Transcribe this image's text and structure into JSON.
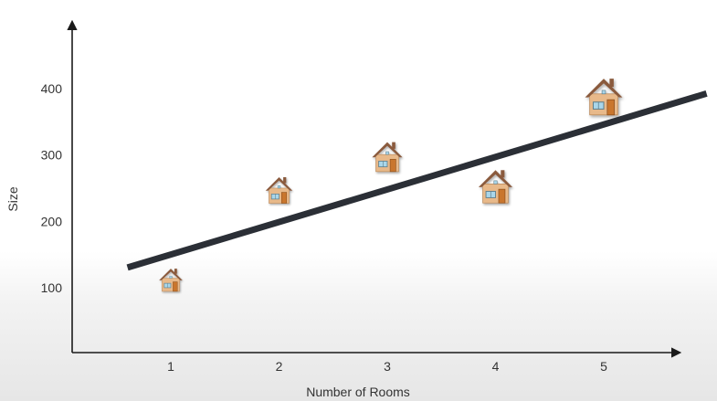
{
  "chart_data": {
    "type": "scatter",
    "xlabel": "Number of Rooms",
    "ylabel": "Size",
    "x_ticks": [
      1,
      2,
      3,
      4,
      5
    ],
    "y_ticks": [
      100,
      200,
      300,
      400
    ],
    "points": [
      {
        "x": 1,
        "y": 110,
        "marker": "house-icon"
      },
      {
        "x": 2,
        "y": 245,
        "marker": "house-icon"
      },
      {
        "x": 3,
        "y": 295,
        "marker": "house-icon"
      },
      {
        "x": 4,
        "y": 250,
        "marker": "house-icon"
      },
      {
        "x": 5,
        "y": 385,
        "marker": "house-icon"
      }
    ],
    "trend_line": {
      "slope": 49,
      "intercept": 101
    },
    "grid": false,
    "colors": {
      "line": "#2b2f36",
      "axis": "#1a1a1a",
      "roof": "#8a5a3c",
      "wall": "#e8b98a",
      "door": "#c9762f",
      "window": "#a9d6ea"
    }
  }
}
